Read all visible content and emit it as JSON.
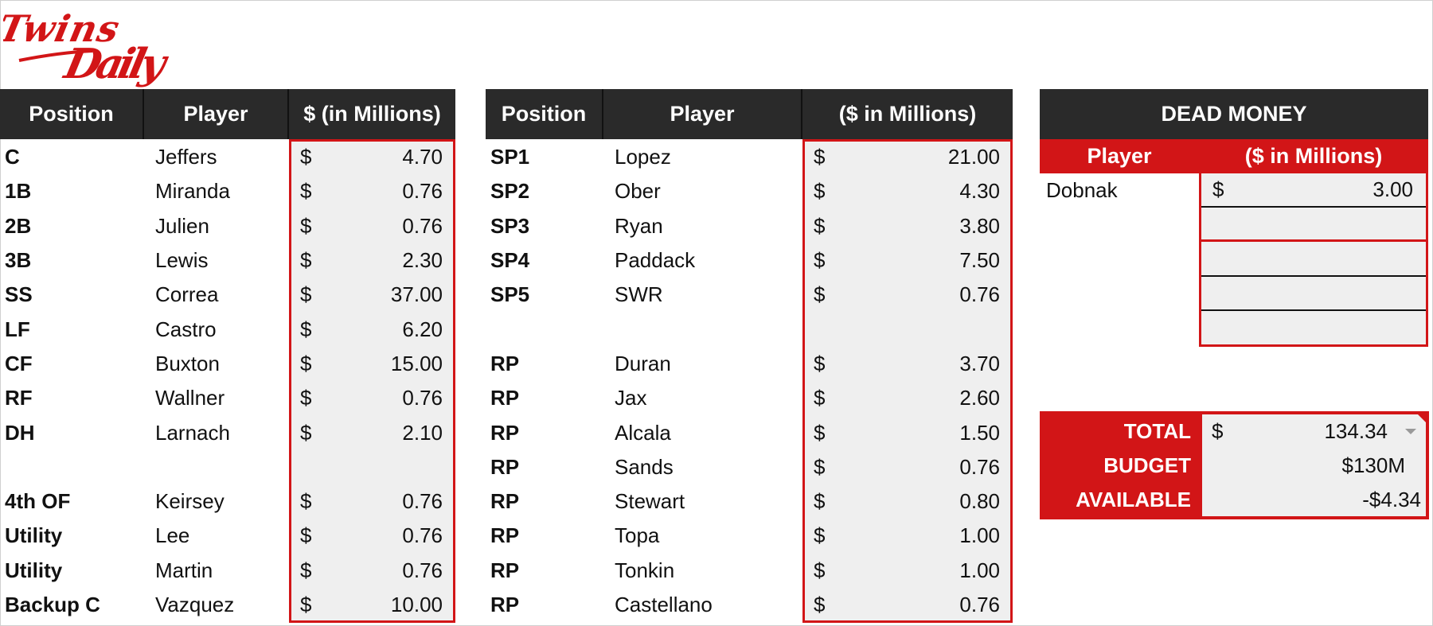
{
  "logo": {
    "text": "Twins Daily",
    "color": "#d21517"
  },
  "colors": {
    "header_dark": "#2a2a2a",
    "accent_red": "#d21517",
    "cell_bg": "#efefef"
  },
  "lineup": {
    "headers": [
      "Position",
      "Player",
      "$ (in Millions)"
    ],
    "rows": [
      {
        "position": "C",
        "player": "Jeffers",
        "currency": "$",
        "amount": "4.70"
      },
      {
        "position": "1B",
        "player": "Miranda",
        "currency": "$",
        "amount": "0.76"
      },
      {
        "position": "2B",
        "player": "Julien",
        "currency": "$",
        "amount": "0.76"
      },
      {
        "position": "3B",
        "player": "Lewis",
        "currency": "$",
        "amount": "2.30"
      },
      {
        "position": "SS",
        "player": "Correa",
        "currency": "$",
        "amount": "37.00"
      },
      {
        "position": "LF",
        "player": "Castro",
        "currency": "$",
        "amount": "6.20"
      },
      {
        "position": "CF",
        "player": "Buxton",
        "currency": "$",
        "amount": "15.00"
      },
      {
        "position": "RF",
        "player": "Wallner",
        "currency": "$",
        "amount": "0.76"
      },
      {
        "position": "DH",
        "player": "Larnach",
        "currency": "$",
        "amount": "2.10"
      },
      {
        "position": "",
        "player": "",
        "currency": "",
        "amount": ""
      },
      {
        "position": "4th OF",
        "player": "Keirsey",
        "currency": "$",
        "amount": "0.76"
      },
      {
        "position": "Utility",
        "player": "Lee",
        "currency": "$",
        "amount": "0.76"
      },
      {
        "position": "Utility",
        "player": "Martin",
        "currency": "$",
        "amount": "0.76"
      },
      {
        "position": "Backup C",
        "player": "Vazquez",
        "currency": "$",
        "amount": "10.00"
      }
    ]
  },
  "pitching": {
    "headers": [
      "Position",
      "Player",
      "($ in Millions)"
    ],
    "rows": [
      {
        "position": "SP1",
        "player": "Lopez",
        "currency": "$",
        "amount": "21.00"
      },
      {
        "position": "SP2",
        "player": "Ober",
        "currency": "$",
        "amount": "4.30"
      },
      {
        "position": "SP3",
        "player": "Ryan",
        "currency": "$",
        "amount": "3.80"
      },
      {
        "position": "SP4",
        "player": "Paddack",
        "currency": "$",
        "amount": "7.50"
      },
      {
        "position": "SP5",
        "player": "SWR",
        "currency": "$",
        "amount": "0.76"
      },
      {
        "position": "",
        "player": "",
        "currency": "",
        "amount": ""
      },
      {
        "position": "RP",
        "player": "Duran",
        "currency": "$",
        "amount": "3.70"
      },
      {
        "position": "RP",
        "player": "Jax",
        "currency": "$",
        "amount": "2.60"
      },
      {
        "position": "RP",
        "player": "Alcala",
        "currency": "$",
        "amount": "1.50"
      },
      {
        "position": "RP",
        "player": "Sands",
        "currency": "$",
        "amount": "0.76"
      },
      {
        "position": "RP",
        "player": "Stewart",
        "currency": "$",
        "amount": "0.80"
      },
      {
        "position": "RP",
        "player": "Topa",
        "currency": "$",
        "amount": "1.00"
      },
      {
        "position": "RP",
        "player": "Tonkin",
        "currency": "$",
        "amount": "1.00"
      },
      {
        "position": "RP",
        "player": "Castellano",
        "currency": "$",
        "amount": "0.76"
      }
    ]
  },
  "dead_money": {
    "title": "DEAD MONEY",
    "headers": [
      "Player",
      "($ in Millions)"
    ],
    "rows": [
      {
        "player": "Dobnak",
        "currency": "$",
        "amount": "3.00"
      },
      {
        "player": "",
        "currency": "",
        "amount": ""
      },
      {
        "player": "",
        "currency": "",
        "amount": ""
      },
      {
        "player": "",
        "currency": "",
        "amount": ""
      },
      {
        "player": "",
        "currency": "",
        "amount": ""
      }
    ]
  },
  "summary": {
    "total_label": "TOTAL",
    "total_currency": "$",
    "total_value": "134.34",
    "budget_label": "BUDGET",
    "budget_value": "$130M",
    "available_label": "AVAILABLE",
    "available_value": "-$4.34"
  }
}
